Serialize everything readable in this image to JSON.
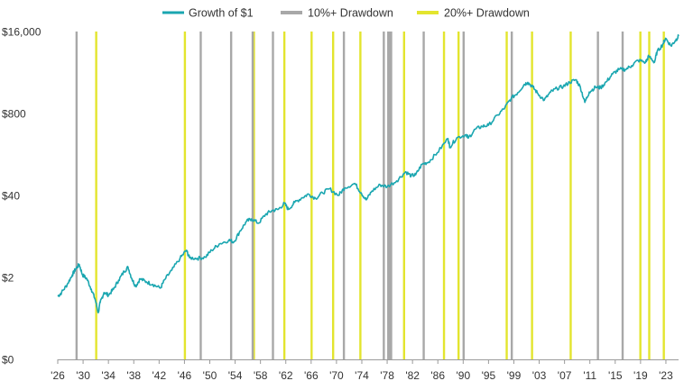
{
  "chart_data": {
    "type": "line",
    "title": "",
    "xlabel": "",
    "ylabel": "",
    "y_scale": "log",
    "xlim": [
      1926,
      2024
    ],
    "ylim_log": [
      0.1,
      16000
    ],
    "y_ticks": [
      {
        "label": "$16,000",
        "value": 16000
      },
      {
        "label": "$800",
        "value": 800
      },
      {
        "label": "$40",
        "value": 40
      },
      {
        "label": "$2",
        "value": 2
      },
      {
        "label": "$0",
        "value": 0.1
      }
    ],
    "x_ticks": [
      {
        "label": "'26",
        "year": 1926
      },
      {
        "label": "'30",
        "year": 1930
      },
      {
        "label": "'34",
        "year": 1934
      },
      {
        "label": "'38",
        "year": 1938
      },
      {
        "label": "'42",
        "year": 1942
      },
      {
        "label": "'46",
        "year": 1946
      },
      {
        "label": "'50",
        "year": 1950
      },
      {
        "label": "'54",
        "year": 1954
      },
      {
        "label": "'58",
        "year": 1958
      },
      {
        "label": "'62",
        "year": 1962
      },
      {
        "label": "'66",
        "year": 1966
      },
      {
        "label": "'70",
        "year": 1970
      },
      {
        "label": "'74",
        "year": 1974
      },
      {
        "label": "'78",
        "year": 1978
      },
      {
        "label": "'82",
        "year": 1982
      },
      {
        "label": "'86",
        "year": 1986
      },
      {
        "label": "'90",
        "year": 1990
      },
      {
        "label": "'95",
        "year": 1994
      },
      {
        "label": "'99",
        "year": 1998
      },
      {
        "label": "'03",
        "year": 2002
      },
      {
        "label": "'07",
        "year": 2006
      },
      {
        "label": "'11",
        "year": 2010
      },
      {
        "label": "'15",
        "year": 2014
      },
      {
        "label": "'19",
        "year": 2018
      },
      {
        "label": "'23",
        "year": 2022
      }
    ],
    "legend_position": "top-center",
    "colors": {
      "growth": "#1aa6b0",
      "drawdown10": "#a8a8a8",
      "drawdown20": "#e3e52e",
      "axis": "#9a9a9a"
    },
    "series": [
      {
        "name": "Growth of $1",
        "points": [
          [
            1926.0,
            1.0
          ],
          [
            1926.6,
            1.15
          ],
          [
            1927.5,
            1.55
          ],
          [
            1928.3,
            2.2
          ],
          [
            1928.8,
            2.7
          ],
          [
            1929.4,
            3.2
          ],
          [
            1929.9,
            2.2
          ],
          [
            1930.6,
            1.9
          ],
          [
            1931.3,
            1.3
          ],
          [
            1931.9,
            0.9
          ],
          [
            1932.4,
            0.55
          ],
          [
            1932.7,
            0.8
          ],
          [
            1933.3,
            1.15
          ],
          [
            1934.0,
            1.05
          ],
          [
            1934.8,
            1.3
          ],
          [
            1935.6,
            1.8
          ],
          [
            1936.5,
            2.5
          ],
          [
            1937.1,
            2.9
          ],
          [
            1937.7,
            1.9
          ],
          [
            1938.3,
            1.45
          ],
          [
            1939.0,
            1.9
          ],
          [
            1940.0,
            1.7
          ],
          [
            1941.0,
            1.55
          ],
          [
            1942.2,
            1.35
          ],
          [
            1942.9,
            1.85
          ],
          [
            1944.0,
            2.6
          ],
          [
            1945.3,
            4.0
          ],
          [
            1946.3,
            5.4
          ],
          [
            1946.8,
            4.1
          ],
          [
            1948.0,
            4.0
          ],
          [
            1949.3,
            4.2
          ],
          [
            1950.3,
            5.4
          ],
          [
            1951.5,
            6.8
          ],
          [
            1953.0,
            7.8
          ],
          [
            1953.8,
            7.3
          ],
          [
            1954.8,
            11.0
          ],
          [
            1955.8,
            15.5
          ],
          [
            1956.6,
            17.0
          ],
          [
            1957.7,
            14.5
          ],
          [
            1958.8,
            20.0
          ],
          [
            1959.8,
            23.0
          ],
          [
            1960.8,
            24.0
          ],
          [
            1961.8,
            30.0
          ],
          [
            1962.4,
            24.0
          ],
          [
            1963.4,
            31.0
          ],
          [
            1964.6,
            37.0
          ],
          [
            1965.6,
            42.0
          ],
          [
            1966.7,
            36.0
          ],
          [
            1967.8,
            44.0
          ],
          [
            1968.9,
            51.0
          ],
          [
            1970.3,
            40.0
          ],
          [
            1971.3,
            53.0
          ],
          [
            1972.9,
            62.0
          ],
          [
            1973.9,
            44.0
          ],
          [
            1974.7,
            34.0
          ],
          [
            1975.6,
            47.0
          ],
          [
            1976.9,
            59.0
          ],
          [
            1978.0,
            55.0
          ],
          [
            1979.5,
            68.0
          ],
          [
            1980.9,
            95.0
          ],
          [
            1981.8,
            82.0
          ],
          [
            1982.5,
            85.0
          ],
          [
            1983.5,
            125.0
          ],
          [
            1984.5,
            135.0
          ],
          [
            1985.9,
            190.0
          ],
          [
            1987.6,
            320.0
          ],
          [
            1987.9,
            235.0
          ],
          [
            1989.0,
            330.0
          ],
          [
            1990.5,
            370.0
          ],
          [
            1990.8,
            325.0
          ],
          [
            1991.9,
            450.0
          ],
          [
            1993.0,
            500.0
          ],
          [
            1994.0,
            520.0
          ],
          [
            1995.5,
            760.0
          ],
          [
            1996.6,
            1000.0
          ],
          [
            1997.6,
            1400.0
          ],
          [
            1998.6,
            1700.0
          ],
          [
            1999.6,
            2300.0
          ],
          [
            2000.2,
            2500.0
          ],
          [
            2001.0,
            2100.0
          ],
          [
            2001.8,
            1650.0
          ],
          [
            2002.8,
            1300.0
          ],
          [
            2003.8,
            1750.0
          ],
          [
            2004.8,
            2000.0
          ],
          [
            2005.8,
            2150.0
          ],
          [
            2006.8,
            2500.0
          ],
          [
            2007.8,
            2750.0
          ],
          [
            2008.5,
            2100.0
          ],
          [
            2009.2,
            1200.0
          ],
          [
            2009.9,
            1750.0
          ],
          [
            2010.9,
            2100.0
          ],
          [
            2011.7,
            2050.0
          ],
          [
            2012.6,
            2550.0
          ],
          [
            2013.6,
            3400.0
          ],
          [
            2014.6,
            4000.0
          ],
          [
            2015.6,
            4000.0
          ],
          [
            2016.6,
            4600.0
          ],
          [
            2017.6,
            5600.0
          ],
          [
            2018.8,
            5200.0
          ],
          [
            2019.3,
            6500.0
          ],
          [
            2020.2,
            5200.0
          ],
          [
            2020.6,
            7600.0
          ],
          [
            2021.5,
            10000.0
          ],
          [
            2021.95,
            12500.0
          ],
          [
            2022.8,
            9500.0
          ],
          [
            2023.5,
            11500.0
          ],
          [
            2024.0,
            13500.0
          ]
        ]
      }
    ],
    "drawdown_10": {
      "name": "10%+ Drawdown",
      "periods": [
        [
          1928.8,
          1929.0
        ],
        [
          1948.4,
          1948.6
        ],
        [
          1953.2,
          1953.4
        ],
        [
          1956.6,
          1956.8
        ],
        [
          1959.8,
          1960.0
        ],
        [
          1971.0,
          1971.2
        ],
        [
          1977.3,
          1977.5
        ],
        [
          1978.0,
          1978.8
        ],
        [
          1983.6,
          1983.8
        ],
        [
          1989.9,
          1990.1
        ],
        [
          1997.5,
          1997.7
        ],
        [
          2011.1,
          2011.3
        ],
        [
          2015.0,
          2015.2
        ]
      ]
    },
    "drawdown_20": {
      "name": "20%+ Drawdown",
      "periods": [
        [
          1931.9,
          1932.1
        ],
        [
          1945.9,
          1946.1
        ],
        [
          1956.8,
          1957.0
        ],
        [
          1961.6,
          1961.8
        ],
        [
          1965.9,
          1966.1
        ],
        [
          1969.3,
          1969.5
        ],
        [
          1973.6,
          1973.8
        ],
        [
          1980.5,
          1980.7
        ],
        [
          1986.8,
          1987.0
        ],
        [
          1989.1,
          1989.3
        ],
        [
          1996.7,
          1996.9
        ],
        [
          2000.7,
          2000.9
        ],
        [
          2006.8,
          2007.0
        ],
        [
          2017.8,
          2018.0
        ],
        [
          2019.2,
          2019.4
        ],
        [
          2021.5,
          2021.7
        ]
      ]
    }
  }
}
